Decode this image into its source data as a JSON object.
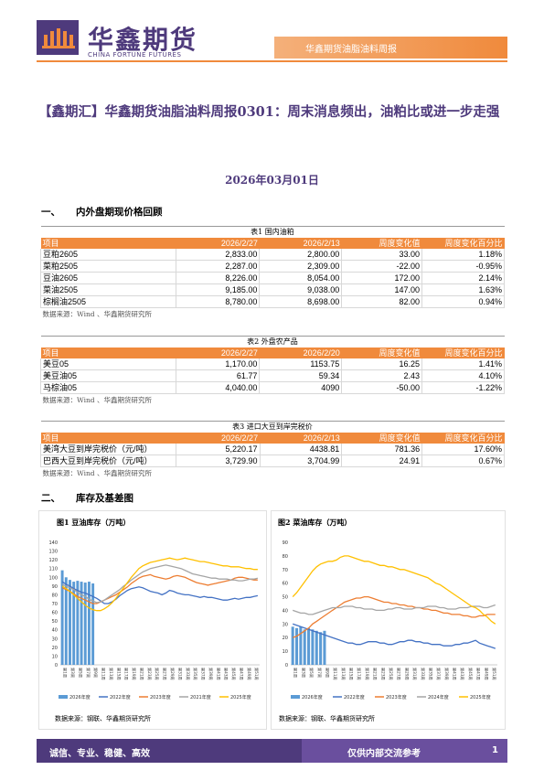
{
  "header": {
    "logo_title": "华鑫期货",
    "logo_subtitle": "CHINA FORTUNE FUTURES",
    "report_series": "华鑫期货油脂油料周报"
  },
  "title": "【鑫期汇】华鑫期货油脂油料周报0301：周末消息频出，油粕比或进一步走强",
  "date": "2026年03月01日",
  "section1": {
    "num": "一、",
    "title": "内外盘期现价格回顾"
  },
  "section2": {
    "num": "二、",
    "title": "库存及基差图"
  },
  "colors": {
    "brand": "#4e3a7c",
    "accent": "#f08a3c"
  },
  "tables": [
    {
      "caption": "表1 国内油粕",
      "headers": [
        "项目",
        "2026/2/27",
        "2026/2/13",
        "周度变化值",
        "周度变化百分比"
      ],
      "rows": [
        [
          "豆粕2605",
          "2,833.00",
          "2,800.00",
          "33.00",
          "1.18%"
        ],
        [
          "菜粕2505",
          "2,287.00",
          "2,309.00",
          "-22.00",
          "-0.95%"
        ],
        [
          "豆油2605",
          "8,226.00",
          "8,054.00",
          "172.00",
          "2.14%"
        ],
        [
          "菜油2505",
          "9,185.00",
          "9,038.00",
          "147.00",
          "1.63%"
        ],
        [
          "棕榈油2505",
          "8,780.00",
          "8,698.00",
          "82.00",
          "0.94%"
        ]
      ],
      "source": "数据来源：Wind 、华鑫期货研究所"
    },
    {
      "caption": "表2 外盘农产品",
      "headers": [
        "项目",
        "2026/2/27",
        "2026/2/20",
        "周度变化值",
        "周度变化百分比"
      ],
      "rows": [
        [
          "美豆05",
          "1,170.00",
          "1153.75",
          "16.25",
          "1.41%"
        ],
        [
          "美豆油05",
          "61.77",
          "59.34",
          "2.43",
          "4.10%"
        ],
        [
          "马棕油05",
          "4,040.00",
          "4090",
          "-50.00",
          "-1.22%"
        ]
      ],
      "source": "数据来源：Wind 、华鑫期货研究所"
    },
    {
      "caption": "表3 进口大豆到岸完税价",
      "headers": [
        "项目",
        "2026/2/27",
        "2026/2/13",
        "周度变化值",
        "周度变化百分比"
      ],
      "rows": [
        [
          "美湾大豆到岸完税价（元/吨）",
          "5,220.17",
          "4438.81",
          "781.36",
          "17.60%"
        ],
        [
          "巴西大豆到岸完税价（元/吨）",
          "3,729.90",
          "3,704.99",
          "24.91",
          "0.67%"
        ]
      ],
      "source": "数据来源：Wind 、华鑫期货研究所"
    }
  ],
  "chart_data": [
    {
      "type": "line",
      "title": "图1 豆油库存（万吨）",
      "source": "数据来源：钢联、华鑫期货研究所",
      "ylim": [
        0,
        140
      ],
      "yticks": [
        0,
        10,
        20,
        30,
        40,
        50,
        60,
        70,
        80,
        90,
        100,
        110,
        120,
        130,
        140
      ],
      "x_count": 52,
      "xtick_labels": [
        "第1周",
        "第3周",
        "第5周",
        "第7周",
        "第9周",
        "第11周",
        "第13周",
        "第15周",
        "第17周",
        "第19周",
        "第21周",
        "第23周",
        "第25周",
        "第27周",
        "第29周",
        "第31周",
        "第33周",
        "第35周",
        "第37周",
        "第39周",
        "第41周",
        "第43周",
        "第45周",
        "第47周",
        "第49周",
        "第51周"
      ],
      "legend_position": "bottom",
      "series": [
        {
          "name": "2026年度",
          "kind": "bar",
          "color": "#5b9bd5",
          "values": [
            108,
            100,
            97,
            95,
            96,
            95,
            94,
            95,
            93
          ]
        },
        {
          "name": "2022年度",
          "kind": "line",
          "color": "#4472c4",
          "values": [
            95,
            92,
            90,
            87,
            85,
            83,
            82,
            80,
            78,
            76,
            73,
            70,
            70,
            72,
            75,
            79,
            82,
            85,
            87,
            88,
            89,
            88,
            86,
            84,
            83,
            82,
            80,
            82,
            85,
            84,
            82,
            81,
            80,
            80,
            79,
            78,
            77,
            78,
            77,
            77,
            76,
            75,
            74,
            74,
            75,
            76,
            75,
            76,
            77,
            77,
            78,
            79
          ]
        },
        {
          "name": "2023年度",
          "kind": "line",
          "color": "#ed7d31",
          "values": [
            88,
            86,
            84,
            81,
            78,
            76,
            74,
            72,
            70,
            70,
            72,
            74,
            76,
            78,
            80,
            83,
            86,
            89,
            93,
            96,
            99,
            101,
            102,
            103,
            101,
            100,
            99,
            98,
            99,
            101,
            102,
            101,
            100,
            98,
            96,
            94,
            93,
            92,
            91,
            92,
            93,
            94,
            95,
            96,
            97,
            99,
            100,
            100,
            99,
            98,
            97,
            97
          ]
        },
        {
          "name": "2021年度",
          "kind": "line",
          "color": "#a5a5a5",
          "values": [
            92,
            90,
            88,
            86,
            83,
            80,
            78,
            75,
            73,
            71,
            72,
            74,
            77,
            80,
            83,
            86,
            90,
            93,
            97,
            100,
            103,
            106,
            108,
            110,
            111,
            112,
            113,
            114,
            113,
            112,
            111,
            110,
            108,
            106,
            104,
            103,
            102,
            101,
            100,
            99,
            99,
            98,
            98,
            98,
            97,
            97,
            96,
            96,
            97,
            98,
            98,
            99
          ]
        },
        {
          "name": "2025年度",
          "kind": "line",
          "color": "#ffc000",
          "values": [
            90,
            87,
            84,
            80,
            76,
            72,
            68,
            65,
            63,
            62,
            62,
            64,
            67,
            71,
            76,
            82,
            88,
            94,
            100,
            105,
            110,
            113,
            115,
            117,
            118,
            119,
            120,
            121,
            122,
            121,
            120,
            121,
            122,
            121,
            120,
            119,
            118,
            118,
            117,
            116,
            115,
            114,
            113,
            113,
            112,
            112,
            112,
            111,
            110,
            110,
            109,
            109
          ]
        }
      ]
    },
    {
      "type": "line",
      "title": "图2 菜油库存（万吨）",
      "source": "数据来源：钢联、华鑫期货研究所",
      "ylim": [
        0,
        90
      ],
      "yticks": [
        0,
        10,
        20,
        30,
        40,
        50,
        60,
        70,
        80,
        90
      ],
      "x_count": 52,
      "xtick_labels": [
        "第1周",
        "第3周",
        "第5周",
        "第7周",
        "第9周",
        "第11周",
        "第13周",
        "第15周",
        "第17周",
        "第19周",
        "第21周",
        "第23周",
        "第25周",
        "第27周",
        "第29周",
        "第31周",
        "第33周",
        "第35周",
        "第37周",
        "第39周",
        "第41周",
        "第43周",
        "第45周",
        "第47周",
        "第49周",
        "第51周"
      ],
      "legend_position": "bottom",
      "series": [
        {
          "name": "2026年度",
          "kind": "bar",
          "color": "#5b9bd5",
          "values": [
            28,
            27,
            28,
            26,
            27,
            26,
            25,
            24,
            25
          ]
        },
        {
          "name": "2022年度",
          "kind": "line",
          "color": "#4472c4",
          "values": [
            30,
            29,
            28,
            27,
            26,
            25,
            24,
            23,
            22,
            21,
            20,
            19,
            18,
            17,
            16,
            16,
            15,
            15,
            16,
            17,
            17,
            17,
            16,
            16,
            15,
            15,
            16,
            17,
            17,
            18,
            18,
            17,
            17,
            16,
            16,
            15,
            15,
            15,
            14,
            14,
            14,
            15,
            15,
            16,
            16,
            17,
            18,
            16,
            15,
            14,
            13,
            12
          ]
        },
        {
          "name": "2023年度",
          "kind": "line",
          "color": "#ed7d31",
          "values": [
            20,
            21,
            23,
            25,
            27,
            30,
            32,
            34,
            36,
            38,
            40,
            42,
            44,
            46,
            47,
            48,
            49,
            49,
            50,
            50,
            49,
            48,
            47,
            46,
            46,
            45,
            45,
            44,
            44,
            43,
            43,
            42,
            42,
            41,
            41,
            40,
            40,
            39,
            38,
            38,
            37,
            37,
            37,
            36,
            36,
            35,
            35,
            36,
            36,
            37,
            37,
            37
          ]
        },
        {
          "name": "2024年度",
          "kind": "line",
          "color": "#a5a5a5",
          "values": [
            40,
            39,
            38,
            38,
            37,
            37,
            38,
            39,
            40,
            41,
            42,
            42,
            42,
            43,
            43,
            43,
            42,
            42,
            41,
            41,
            41,
            40,
            40,
            40,
            41,
            41,
            42,
            42,
            41,
            41,
            41,
            42,
            42,
            42,
            43,
            43,
            43,
            42,
            42,
            41,
            41,
            41,
            42,
            42,
            42,
            43,
            43,
            43,
            42,
            42,
            43,
            44
          ]
        },
        {
          "name": "2025年度",
          "kind": "line",
          "color": "#ffc000",
          "values": [
            50,
            53,
            57,
            61,
            65,
            69,
            72,
            74,
            75,
            76,
            76,
            77,
            79,
            80,
            80,
            79,
            78,
            77,
            76,
            76,
            75,
            74,
            73,
            73,
            72,
            72,
            71,
            70,
            70,
            69,
            68,
            67,
            66,
            65,
            64,
            62,
            60,
            59,
            57,
            55,
            53,
            51,
            49,
            47,
            45,
            43,
            42,
            40,
            37,
            35,
            32,
            30
          ]
        }
      ]
    }
  ],
  "footer": {
    "slogan": "诚信、专业、稳健、高效",
    "notice": "仅供内部交流参考",
    "page": "1"
  }
}
